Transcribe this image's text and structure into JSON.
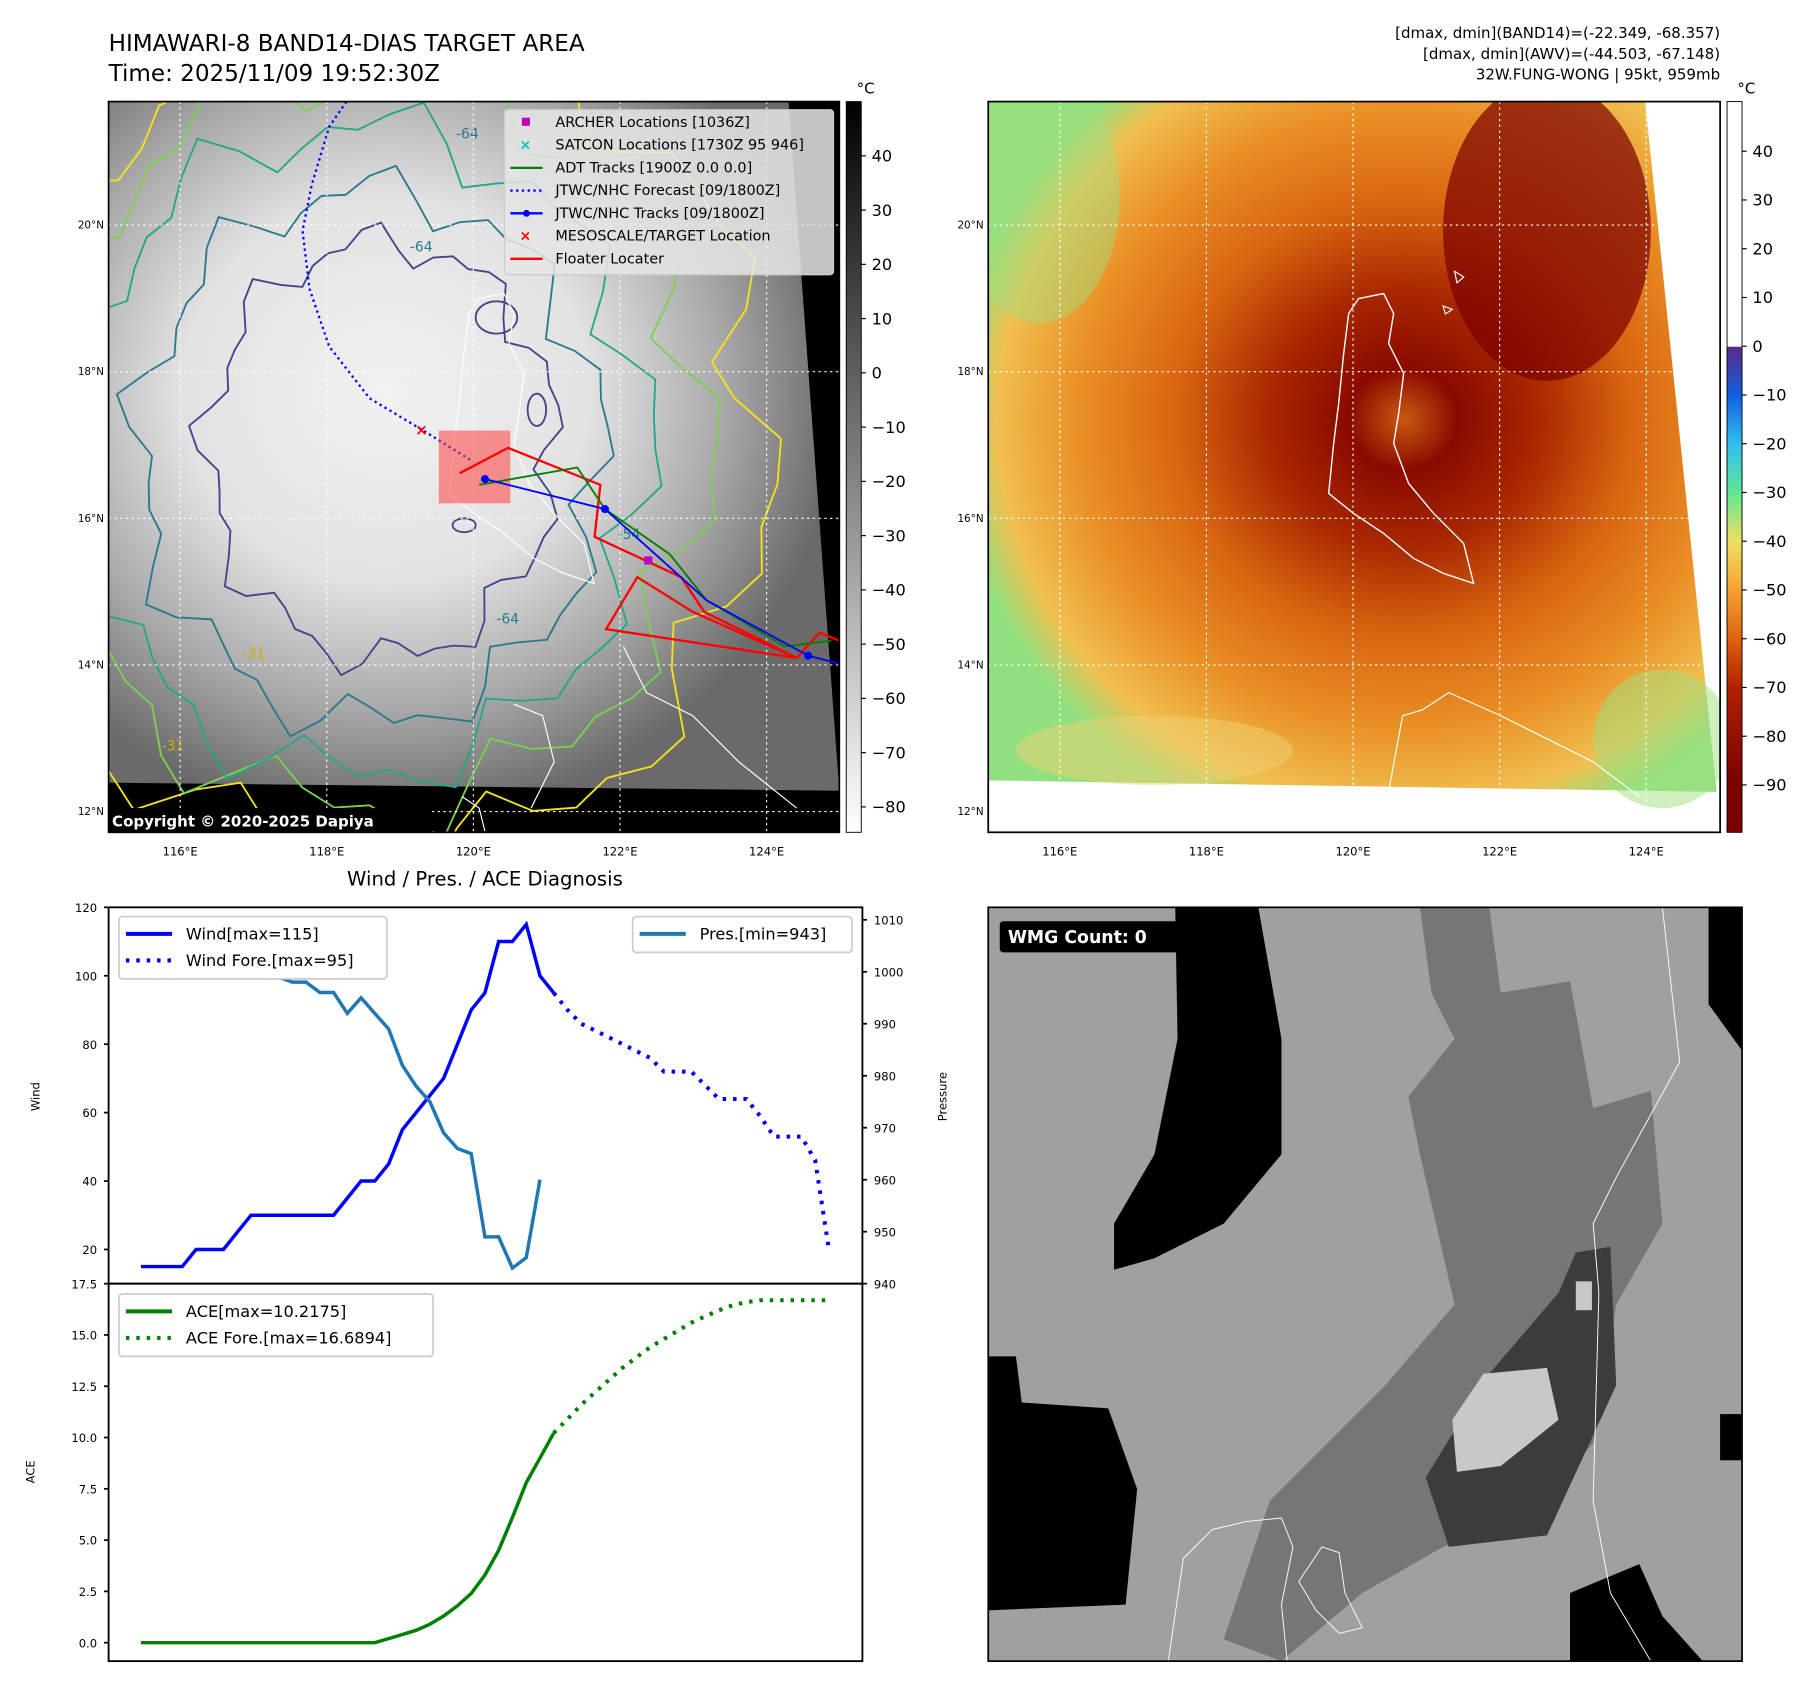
{
  "title": {
    "line1": "HIMAWARI-8 BAND14-DIAS TARGET AREA",
    "line2": "Time: 2025/11/09 19:52:30Z"
  },
  "info": {
    "line1": "[dmax, dmin](BAND14)=(-22.349, -68.357)",
    "line2": "[dmax, dmin](AWV)=(-44.503, -67.148)",
    "line3": "32W.FUNG-WONG | 95kt, 959mb"
  },
  "maps": {
    "lat_labels": [
      "20°N",
      "18°N",
      "16°N",
      "14°N",
      "12°N"
    ],
    "lon_labels": [
      "116°E",
      "118°E",
      "120°E",
      "122°E",
      "124°E"
    ],
    "copyright": "Copyright © 2020-2025 Dapiya",
    "contour_labels": [
      "-64",
      "-64",
      "-54",
      "-64",
      "-31",
      "-31"
    ]
  },
  "legend": [
    {
      "label": "ARCHER Locations [1036Z]",
      "color": "#c000c0",
      "marker": "square"
    },
    {
      "label": "SATCON Locations [1730Z 95 946]",
      "color": "#00c0c0",
      "marker": "x"
    },
    {
      "label": "ADT Tracks [1900Z 0.0 0.0]",
      "color": "#008000",
      "marker": "line"
    },
    {
      "label": "JTWC/NHC Forecast [09/1800Z]",
      "color": "#0000ff",
      "marker": "dotted"
    },
    {
      "label": "JTWC/NHC Tracks [09/1800Z]",
      "color": "#0000ff",
      "marker": "line-dot"
    },
    {
      "label": "MESOSCALE/TARGET Location",
      "color": "#ff0000",
      "marker": "x"
    },
    {
      "label": "Floater Locater",
      "color": "#ff0000",
      "marker": "line"
    }
  ],
  "colorbar_bw": {
    "unit": "°C",
    "ticks": [
      "40",
      "30",
      "20",
      "10",
      "0",
      "−10",
      "−20",
      "−30",
      "−40",
      "−50",
      "−60",
      "−70",
      "−80"
    ]
  },
  "colorbar_color": {
    "unit": "°C",
    "ticks": [
      "40",
      "30",
      "20",
      "10",
      "0",
      "−10",
      "−20",
      "−30",
      "−40",
      "−50",
      "−60",
      "−70",
      "−80",
      "−90"
    ]
  },
  "chart_data": [
    {
      "type": "line",
      "title": "Wind / Pres. / ACE Diagnosis",
      "ylabel": "Wind",
      "y2label": "Pressure",
      "ylim": [
        10,
        120
      ],
      "y2lim": [
        940,
        1012.4
      ],
      "yticks": [
        "20",
        "40",
        "60",
        "80",
        "100",
        "120"
      ],
      "y2ticks": [
        "940",
        "950",
        "960",
        "970",
        "980",
        "990",
        "1000",
        "1010"
      ],
      "series": [
        {
          "name": "Wind[max=115]",
          "axis": "left",
          "style": "solid",
          "color": "#0000ff",
          "x_start": 0,
          "values": [
            15,
            15,
            15,
            15,
            20,
            20,
            20,
            25,
            30,
            30,
            30,
            30,
            30,
            30,
            30,
            35,
            40,
            40,
            45,
            55,
            60,
            65,
            70,
            80,
            90,
            95,
            110,
            110,
            115,
            100,
            95
          ]
        },
        {
          "name": "Wind Fore.[max=95]",
          "axis": "left",
          "style": "dotted",
          "color": "#0000ff",
          "x_start": 30,
          "values": [
            95,
            90,
            86,
            84,
            82,
            80,
            78,
            76,
            72,
            72,
            72,
            68,
            64,
            64,
            64,
            59,
            53,
            53,
            53,
            46,
            20
          ]
        },
        {
          "name": "Pres.[min=943]",
          "axis": "right",
          "style": "solid",
          "color": "#1f77b4",
          "x_start": 0,
          "values": [
            1010,
            1006,
            1006,
            1006,
            1004,
            1003,
            999,
            1000,
            1000,
            1000,
            999,
            998,
            998,
            996,
            996,
            992,
            995,
            992,
            989,
            982,
            978,
            975,
            969,
            966,
            965,
            949,
            949,
            943,
            945,
            960
          ]
        }
      ],
      "legend_left": [
        "Wind[max=115]",
        "Wind Fore.[max=95]"
      ],
      "legend_right": [
        "Pres.[min=943]"
      ]
    },
    {
      "type": "line",
      "ylabel": "ACE",
      "ylim": [
        -0.9,
        17.5
      ],
      "yticks": [
        "0.0",
        "2.5",
        "5.0",
        "7.5",
        "10.0",
        "12.5",
        "15.0",
        "17.5"
      ],
      "series": [
        {
          "name": "ACE[max=10.2175]",
          "style": "solid",
          "color": "#008000",
          "x_start": 0,
          "values": [
            0,
            0,
            0,
            0,
            0,
            0,
            0,
            0,
            0,
            0,
            0,
            0,
            0,
            0,
            0,
            0.2,
            0.4,
            0.6,
            0.9,
            1.3,
            1.8,
            2.4,
            3.3,
            4.5,
            6.1,
            7.8,
            9.0,
            10.2175
          ]
        },
        {
          "name": "ACE Fore.[max=16.6894]",
          "style": "dotted",
          "color": "#008000",
          "x_start": 30,
          "values": [
            10.2175,
            10.9,
            11.6,
            12.2,
            12.8,
            13.4,
            13.9,
            14.4,
            14.8,
            15.2,
            15.6,
            15.9,
            16.2,
            16.45,
            16.6,
            16.6894,
            16.6894,
            16.6894,
            16.6894,
            16.6894,
            16.6894
          ]
        }
      ]
    }
  ],
  "wmg": {
    "label": "WMG Count: 0"
  }
}
